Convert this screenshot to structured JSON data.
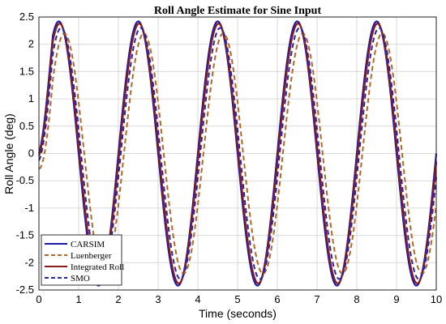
{
  "chart_data": {
    "type": "line",
    "title": "Roll Angle Estimate for Sine Input",
    "xlabel": "Time (seconds)",
    "ylabel": "Roll Angle (deg)",
    "xlim": [
      0,
      10
    ],
    "ylim": [
      -2.5,
      2.5
    ],
    "xticks": [
      "0",
      "1",
      "2",
      "3",
      "4",
      "5",
      "6",
      "7",
      "8",
      "9",
      "10"
    ],
    "yticks": [
      "2.5",
      "2",
      "1.5",
      "1",
      "0.5",
      "0",
      "-0.5",
      "-1",
      "-1.5",
      "-2",
      "-2.5"
    ],
    "grid": true,
    "legend_position": "bottom-left",
    "period_seconds": 2,
    "series": [
      {
        "name": "CARSIM",
        "color": "#1a1aa6",
        "style": "solid",
        "amplitude": 2.42,
        "phase_lag": 0.0
      },
      {
        "name": "Luenberger",
        "color": "#b5651d",
        "style": "dashed",
        "amplitude": 2.2,
        "phase_lag": 0.14
      },
      {
        "name": "Integrated Roll",
        "color": "#8b1a1a",
        "style": "solid",
        "amplitude": 2.38,
        "phase_lag": 0.02
      },
      {
        "name": "SMO",
        "color": "#2323b0",
        "style": "dashed",
        "amplitude": 2.3,
        "phase_lag": 0.06
      }
    ]
  }
}
